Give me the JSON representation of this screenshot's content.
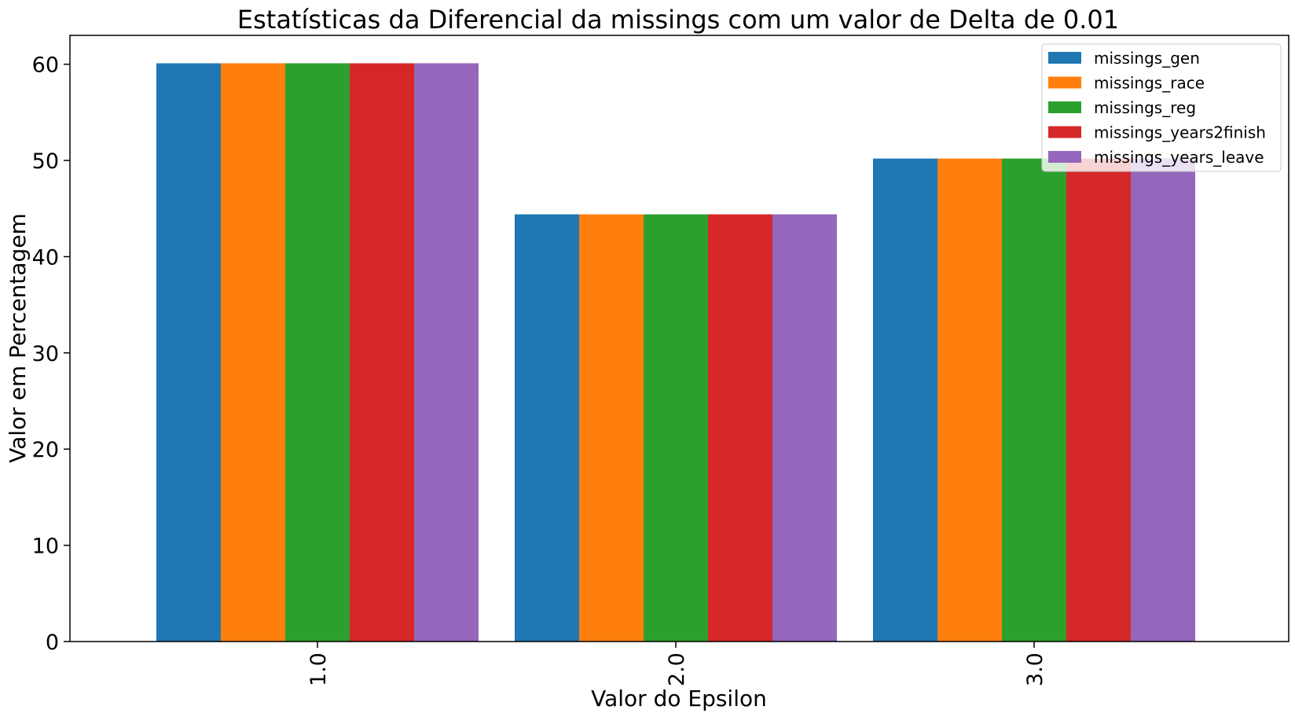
{
  "chart_data": {
    "type": "bar",
    "title": "Estatísticas da Diferencial da missings com um valor de Delta de 0.01",
    "xlabel": "Valor do Epsilon",
    "ylabel": "Valor em Percentagem",
    "categories": [
      "1.0",
      "2.0",
      "3.0"
    ],
    "ylim": [
      0,
      63
    ],
    "yticks": [
      0,
      10,
      20,
      30,
      40,
      50,
      60
    ],
    "legend_position": "top-right",
    "grid": false,
    "series": [
      {
        "name": "missings_gen",
        "color": "#1f77b4",
        "values": [
          60.1,
          44.4,
          50.2
        ]
      },
      {
        "name": "missings_race",
        "color": "#ff7f0e",
        "values": [
          60.1,
          44.4,
          50.2
        ]
      },
      {
        "name": "missings_reg",
        "color": "#2ca02c",
        "values": [
          60.1,
          44.4,
          50.2
        ]
      },
      {
        "name": "missings_years2finish",
        "color": "#d62728",
        "values": [
          60.1,
          44.4,
          50.2
        ]
      },
      {
        "name": "missings_years_leave",
        "color": "#9467bd",
        "values": [
          60.1,
          44.4,
          50.2
        ]
      }
    ]
  }
}
